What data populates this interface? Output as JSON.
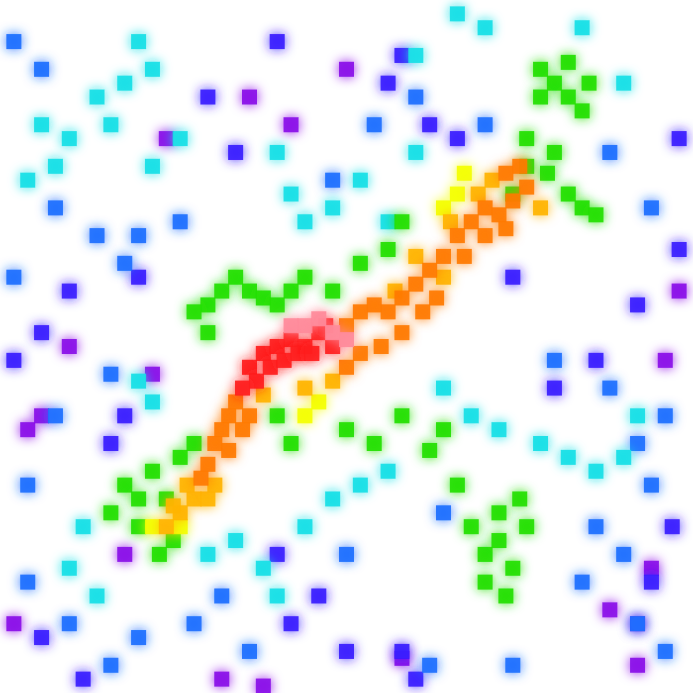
{
  "chart_data": {
    "type": "scatter",
    "marker": "square",
    "tick_labels": false,
    "grid": false,
    "xlim": [
      0,
      100
    ],
    "ylim": [
      0,
      100
    ],
    "series": [
      {
        "color": "#8a10e8",
        "x": [
          36,
          42,
          50,
          24,
          10,
          4,
          6,
          18,
          2,
          22,
          96,
          98,
          88,
          92,
          94,
          58,
          32,
          38,
          92
        ],
        "y": [
          86,
          82,
          90,
          80,
          50,
          38,
          40,
          20,
          10,
          46,
          48,
          58,
          12,
          4,
          18,
          5,
          2,
          1,
          10
        ]
      },
      {
        "color": "#3a1aff",
        "x": [
          40,
          56,
          58,
          62,
          66,
          30,
          34,
          20,
          10,
          6,
          2,
          16,
          18,
          42,
          46,
          50,
          58,
          60,
          80,
          86,
          92,
          98,
          98,
          74,
          12,
          6,
          94,
          97,
          40
        ],
        "y": [
          94,
          88,
          92,
          82,
          80,
          86,
          78,
          60,
          58,
          52,
          48,
          36,
          40,
          10,
          14,
          6,
          6,
          2,
          44,
          48,
          56,
          64,
          80,
          60,
          2,
          8,
          16,
          24,
          20
        ]
      },
      {
        "color": "#1a6fff",
        "x": [
          2,
          6,
          8,
          14,
          18,
          2,
          20,
          26,
          48,
          54,
          60,
          70,
          88,
          94,
          96,
          92,
          88,
          94,
          86,
          90,
          84,
          4,
          8,
          16,
          4,
          20,
          28,
          32,
          36,
          16,
          10,
          96,
          92,
          62,
          74,
          50,
          64,
          80
        ],
        "y": [
          94,
          90,
          70,
          66,
          62,
          60,
          66,
          68,
          74,
          82,
          86,
          82,
          78,
          70,
          40,
          36,
          44,
          30,
          24,
          20,
          16,
          30,
          40,
          46,
          16,
          8,
          10,
          14,
          6,
          4,
          10,
          6,
          10,
          4,
          4,
          20,
          26,
          48
        ]
      },
      {
        "color": "#18e0e6",
        "x": [
          20,
          18,
          14,
          16,
          10,
          6,
          8,
          4,
          22,
          26,
          22,
          40,
          42,
          44,
          48,
          52,
          60,
          56,
          20,
          22,
          30,
          34,
          38,
          40,
          44,
          48,
          52,
          56,
          64,
          68,
          72,
          78,
          82,
          86,
          90,
          92,
          12,
          10,
          14,
          60,
          66,
          70,
          84,
          90
        ],
        "y": [
          94,
          88,
          86,
          82,
          80,
          82,
          76,
          74,
          90,
          80,
          76,
          78,
          72,
          68,
          70,
          74,
          78,
          68,
          45,
          42,
          20,
          22,
          18,
          14,
          24,
          28,
          30,
          32,
          44,
          40,
          38,
          36,
          34,
          32,
          34,
          40,
          24,
          18,
          14,
          92,
          98,
          96,
          96,
          88
        ]
      },
      {
        "color": "#22e000",
        "x": [
          78,
          80,
          82,
          84,
          82,
          78,
          85,
          76,
          80,
          74,
          76,
          79,
          82,
          84,
          86,
          30,
          32,
          34,
          28,
          36,
          38,
          30,
          40,
          42,
          44,
          18,
          20,
          22,
          16,
          24,
          20,
          23,
          25,
          26,
          28,
          70,
          72,
          74,
          70,
          73,
          72,
          76,
          68,
          75,
          66,
          62,
          64,
          56,
          58,
          52,
          48,
          50,
          54,
          58,
          40,
          42
        ],
        "y": [
          90,
          88,
          86,
          84,
          91,
          86,
          88,
          80,
          78,
          72,
          76,
          75,
          72,
          70,
          69,
          56,
          58,
          60,
          55,
          58,
          57,
          52,
          56,
          58,
          60,
          30,
          28,
          32,
          26,
          28,
          24,
          20,
          22,
          34,
          36,
          20,
          22,
          18,
          16,
          14,
          26,
          24,
          24,
          28,
          30,
          35,
          38,
          64,
          68,
          62,
          58,
          38,
          36,
          40,
          40,
          36
        ]
      },
      {
        "color": "#f4ff00",
        "x": [
          64,
          66,
          22,
          26,
          44,
          46,
          67
        ],
        "y": [
          70,
          72,
          24,
          24,
          40,
          42,
          75
        ]
      },
      {
        "color": "#ffb400",
        "x": [
          28,
          27,
          30,
          26,
          24,
          31,
          44,
          48,
          65,
          69,
          71,
          78,
          64,
          57,
          60,
          38,
          25
        ],
        "y": [
          28,
          30,
          28,
          26,
          24,
          30,
          44,
          45,
          68,
          72,
          74,
          70,
          60,
          58,
          63,
          43,
          27
        ]
      },
      {
        "color": "#ff7a00",
        "x": [
          50,
          52,
          54,
          56,
          58,
          60,
          62,
          64,
          66,
          68,
          70,
          72,
          74,
          76,
          70,
          73,
          67,
          33,
          32,
          31,
          33,
          35,
          30,
          29,
          34,
          36,
          50,
          52,
          55,
          58,
          61,
          63,
          75,
          73
        ],
        "y": [
          53,
          55,
          56,
          55,
          57,
          59,
          61,
          63,
          66,
          68,
          70,
          69,
          71,
          73,
          66,
          67,
          63,
          40,
          38,
          36,
          35,
          38,
          33,
          31,
          42,
          40,
          47,
          49,
          50,
          52,
          55,
          57,
          76,
          75
        ]
      },
      {
        "color": "#ff1a1a",
        "x": [
          36,
          38,
          40,
          42,
          44,
          46,
          37,
          39,
          41,
          43,
          45,
          35,
          47,
          48
        ],
        "y": [
          47,
          49,
          50,
          51,
          50,
          52,
          45,
          47,
          48,
          49,
          49,
          44,
          53,
          50
        ]
      },
      {
        "color": "#ff8a9a",
        "x": [
          44,
          46,
          48,
          42,
          50
        ],
        "y": [
          53,
          54,
          52,
          53,
          51
        ]
      }
    ]
  }
}
